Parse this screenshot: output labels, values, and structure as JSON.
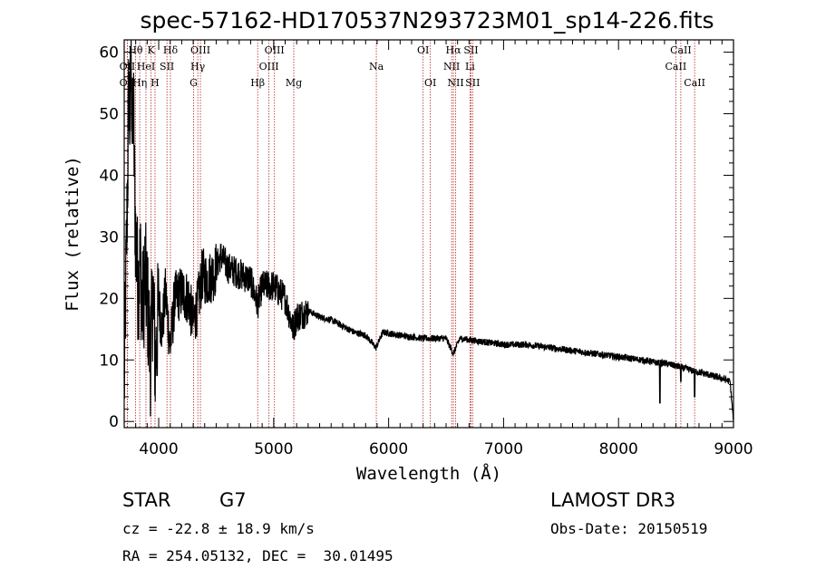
{
  "chart_data": {
    "type": "line",
    "title": "spec-57162-HD170537N293723M01_sp14-226.fits",
    "xlabel": "Wavelength (Å)",
    "ylabel": "Flux (relative)",
    "xlim": [
      3700,
      9000
    ],
    "ylim": [
      -1,
      62
    ],
    "xticks": [
      4000,
      5000,
      6000,
      7000,
      8000,
      9000
    ],
    "yticks": [
      0,
      10,
      20,
      30,
      40,
      50,
      60
    ],
    "series": [
      {
        "name": "spectrum",
        "anchors": [
          [
            3700,
            5
          ],
          [
            3710,
            18
          ],
          [
            3720,
            28
          ],
          [
            3730,
            40
          ],
          [
            3740,
            55
          ],
          [
            3750,
            48
          ],
          [
            3760,
            60
          ],
          [
            3770,
            45
          ],
          [
            3780,
            52
          ],
          [
            3790,
            38
          ],
          [
            3800,
            30
          ],
          [
            3820,
            22
          ],
          [
            3840,
            26
          ],
          [
            3860,
            18
          ],
          [
            3880,
            24
          ],
          [
            3900,
            20
          ],
          [
            3930,
            10
          ],
          [
            3950,
            22
          ],
          [
            3970,
            9
          ],
          [
            4000,
            19
          ],
          [
            4030,
            15
          ],
          [
            4060,
            21
          ],
          [
            4100,
            12
          ],
          [
            4140,
            20
          ],
          [
            4200,
            21
          ],
          [
            4260,
            20
          ],
          [
            4300,
            16
          ],
          [
            4340,
            19
          ],
          [
            4380,
            24
          ],
          [
            4420,
            23
          ],
          [
            4480,
            24
          ],
          [
            4540,
            27
          ],
          [
            4600,
            25
          ],
          [
            4700,
            24
          ],
          [
            4800,
            23
          ],
          [
            4860,
            19
          ],
          [
            4900,
            22
          ],
          [
            5000,
            22
          ],
          [
            5100,
            20
          ],
          [
            5170,
            15
          ],
          [
            5200,
            17
          ],
          [
            5300,
            18
          ],
          [
            5400,
            17
          ],
          [
            5500,
            16.5
          ],
          [
            5600,
            15.5
          ],
          [
            5700,
            14.5
          ],
          [
            5800,
            14
          ],
          [
            5890,
            12
          ],
          [
            5950,
            14.5
          ],
          [
            6100,
            14
          ],
          [
            6300,
            13.5
          ],
          [
            6500,
            13.5
          ],
          [
            6563,
            11
          ],
          [
            6620,
            13.5
          ],
          [
            6800,
            13
          ],
          [
            7000,
            12.5
          ],
          [
            7200,
            12.5
          ],
          [
            7400,
            12
          ],
          [
            7600,
            11.5
          ],
          [
            7800,
            11
          ],
          [
            8000,
            10.5
          ],
          [
            8200,
            10
          ],
          [
            8350,
            9.5
          ],
          [
            8400,
            9.5
          ],
          [
            8500,
            9
          ],
          [
            8600,
            8.5
          ],
          [
            8700,
            8
          ],
          [
            8800,
            7.5
          ],
          [
            8900,
            7
          ],
          [
            8970,
            6.5
          ],
          [
            9000,
            0
          ]
        ],
        "dips": [
          [
            8360,
            3
          ],
          [
            8542,
            6.5
          ],
          [
            8662,
            4
          ]
        ]
      }
    ],
    "spectral_lines": [
      {
        "label": "Hθ",
        "wavelength": 3798,
        "row": 0
      },
      {
        "label": "K",
        "wavelength": 3934,
        "row": 0
      },
      {
        "label": "Hδ",
        "wavelength": 4102,
        "row": 0
      },
      {
        "label": "OIII",
        "wavelength": 4363,
        "row": 0
      },
      {
        "label": "OIII",
        "wavelength": 5007,
        "row": 0
      },
      {
        "label": "OI",
        "wavelength": 6300,
        "row": 0
      },
      {
        "label": "Hα",
        "wavelength": 6563,
        "row": 0
      },
      {
        "label": "SII",
        "wavelength": 6717,
        "row": 0
      },
      {
        "label": "CaII",
        "wavelength": 8542,
        "row": 0
      },
      {
        "label": "OII",
        "wavelength": 3727,
        "row": 1
      },
      {
        "label": "HeI",
        "wavelength": 3889,
        "row": 1
      },
      {
        "label": "SII",
        "wavelength": 4072,
        "row": 1
      },
      {
        "label": "Hγ",
        "wavelength": 4340,
        "row": 1
      },
      {
        "label": "OIII",
        "wavelength": 4959,
        "row": 1
      },
      {
        "label": "Na",
        "wavelength": 5893,
        "row": 1
      },
      {
        "label": "NII",
        "wavelength": 6548,
        "row": 1
      },
      {
        "label": "Li",
        "wavelength": 6708,
        "row": 1
      },
      {
        "label": "CaII",
        "wavelength": 8498,
        "row": 1
      },
      {
        "label": "OII",
        "wavelength": 3727,
        "row": 2
      },
      {
        "label": "Hη",
        "wavelength": 3835,
        "row": 2
      },
      {
        "label": "H",
        "wavelength": 3968,
        "row": 2
      },
      {
        "label": "G",
        "wavelength": 4304,
        "row": 2
      },
      {
        "label": "Hβ",
        "wavelength": 4861,
        "row": 2
      },
      {
        "label": "Mg",
        "wavelength": 5175,
        "row": 2
      },
      {
        "label": "OI",
        "wavelength": 6363,
        "row": 2
      },
      {
        "label": "NII",
        "wavelength": 6583,
        "row": 2
      },
      {
        "label": "SII",
        "wavelength": 6731,
        "row": 2
      },
      {
        "label": "CaII",
        "wavelength": 8662,
        "row": 2
      }
    ],
    "line_color": "#b22222"
  },
  "info": {
    "object_class": "STAR",
    "subclass": "G7",
    "survey": "LAMOST DR3",
    "redshift": "cz = -22.8 ± 18.9 km/s",
    "obs_date": "Obs-Date: 20150519",
    "coords": "RA = 254.05132, DEC =  30.01495"
  }
}
